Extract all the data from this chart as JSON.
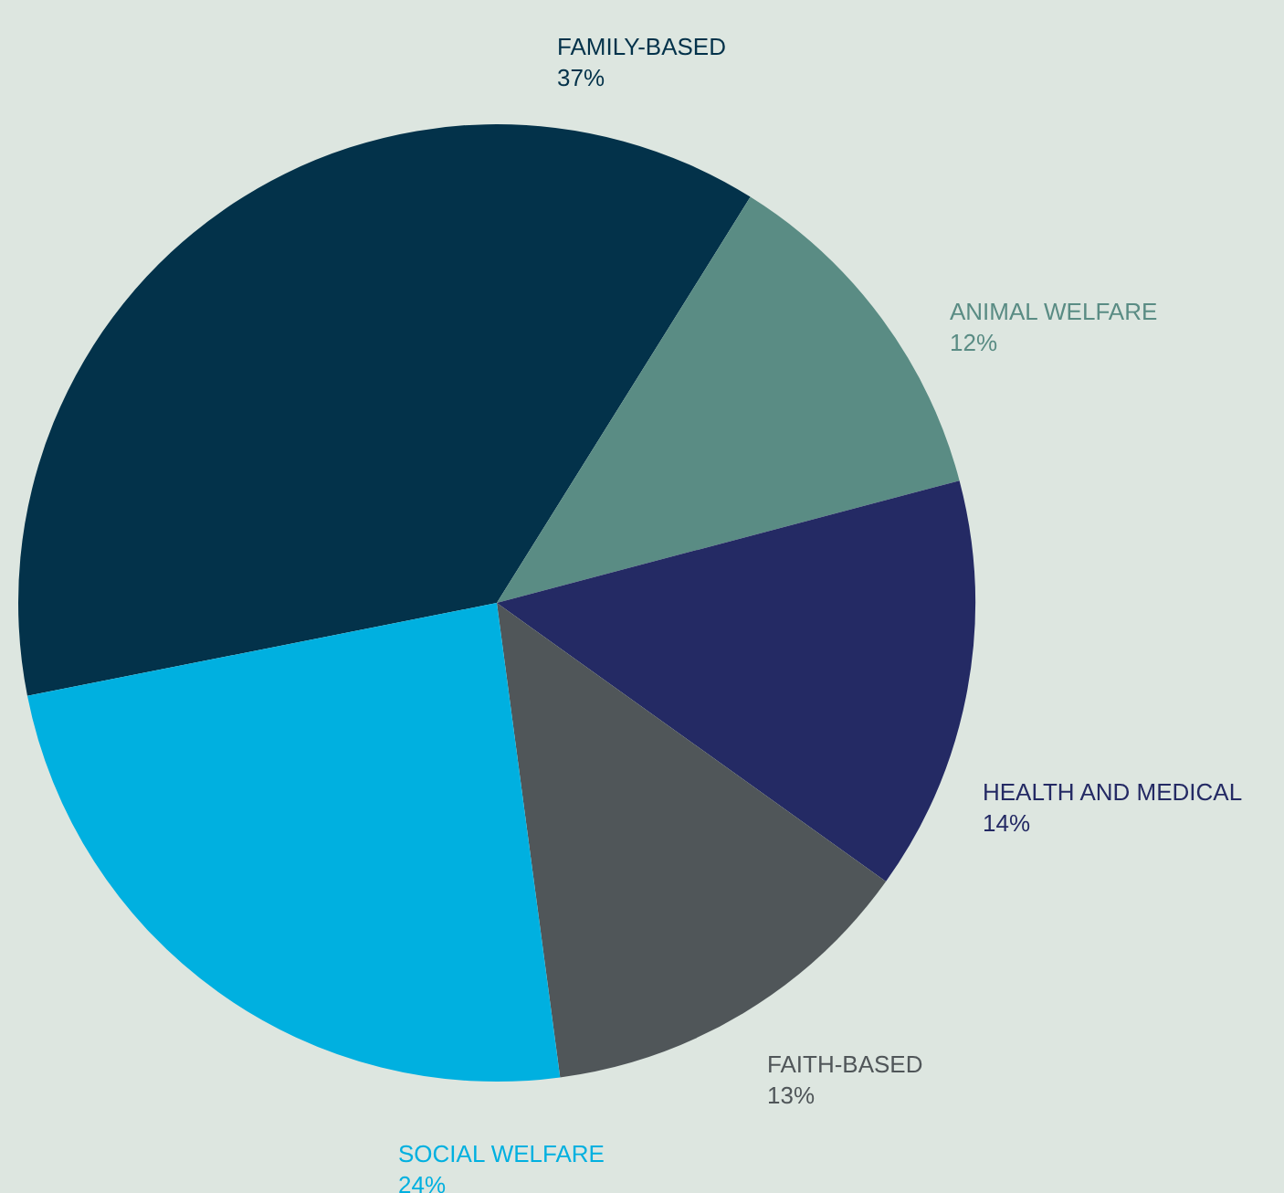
{
  "chart_data": {
    "type": "pie",
    "categories": [
      "FAMILY-BASED",
      "ANIMAL WELFARE",
      "HEALTH AND MEDICAL",
      "FAITH-BASED",
      "SOCIAL WELFARE"
    ],
    "values": [
      37,
      12,
      14,
      13,
      24
    ],
    "value_labels": [
      "37%",
      "12%",
      "14%",
      "13%",
      "24%"
    ],
    "colors": [
      "#03324a",
      "#5a8c84",
      "#242a64",
      "#505659",
      "#00b0e0"
    ],
    "legend": false
  }
}
